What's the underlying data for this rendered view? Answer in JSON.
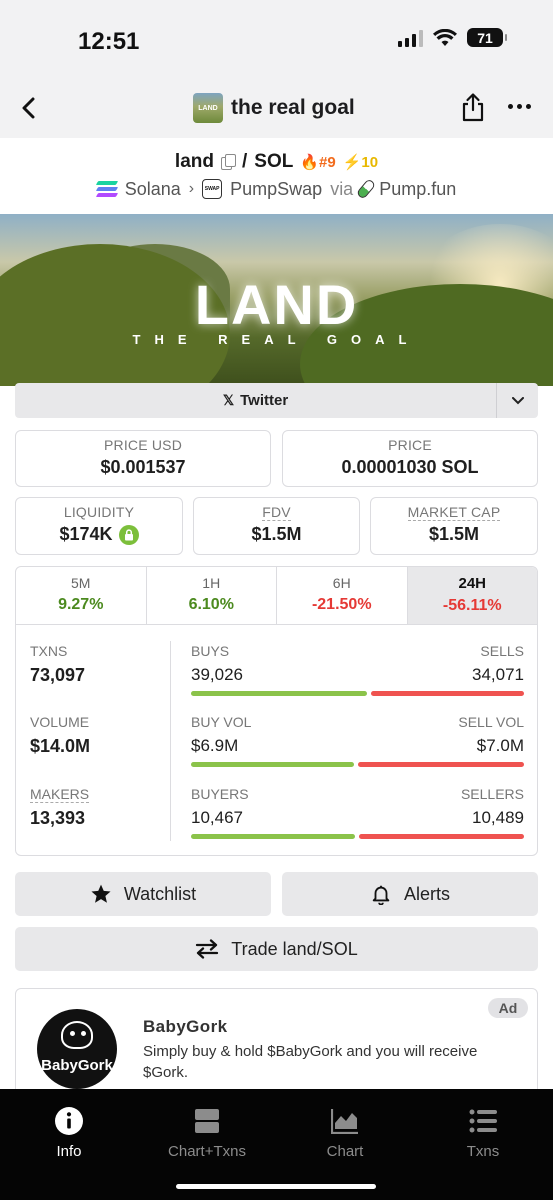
{
  "status_bar": {
    "time": "12:51",
    "battery": "71"
  },
  "nav": {
    "title": "the real goal",
    "thumb_text": "LAND"
  },
  "pair": {
    "base": "land",
    "separator": "/",
    "quote": "SOL",
    "rank_trending": "#9",
    "rank_boost": "10"
  },
  "route": {
    "chain": "Solana",
    "dex": "PumpSwap",
    "via": "via",
    "launchpad": "Pump.fun",
    "dex_icon_text": "SWAP"
  },
  "banner": {
    "title": "LAND",
    "subtitle": "THE REAL GOAL"
  },
  "social": {
    "twitter_label": "Twitter"
  },
  "prices": {
    "price_usd_label": "PRICE USD",
    "price_usd": "$0.001537",
    "price_label": "PRICE",
    "price_native": "0.00001030 SOL",
    "liquidity_label": "LIQUIDITY",
    "liquidity": "$174K",
    "fdv_label": "FDV",
    "fdv": "$1.5M",
    "mcap_label": "MARKET CAP",
    "mcap": "$1.5M"
  },
  "timeframes": [
    {
      "label": "5M",
      "change": "9.27%"
    },
    {
      "label": "1H",
      "change": "6.10%"
    },
    {
      "label": "6H",
      "change": "-21.50%"
    },
    {
      "label": "24H",
      "change": "-56.11%"
    }
  ],
  "stats": {
    "txns": {
      "label": "TXNS",
      "value": "73,097",
      "left_label": "BUYS",
      "left_value": "39,026",
      "right_label": "SELLS",
      "right_value": "34,071",
      "left_share": 0.534
    },
    "volume": {
      "label": "VOLUME",
      "value": "$14.0M",
      "left_label": "BUY VOL",
      "left_value": "$6.9M",
      "right_label": "SELL VOL",
      "right_value": "$7.0M",
      "left_share": 0.496
    },
    "makers": {
      "label": "MAKERS",
      "value": "13,393",
      "left_label": "BUYERS",
      "left_value": "10,467",
      "right_label": "SELLERS",
      "right_value": "10,489",
      "left_share": 0.499
    }
  },
  "actions": {
    "watchlist": "Watchlist",
    "alerts": "Alerts",
    "trade": "Trade land/SOL"
  },
  "ad": {
    "badge": "Ad",
    "title": "BabyGork",
    "description": "Simply buy & hold $BabyGork and you will receive $Gork.",
    "logo_text": "BabyGork"
  },
  "tabbar": [
    {
      "label": "Info",
      "icon": "info-icon"
    },
    {
      "label": "Chart+Txns",
      "icon": "split-view-icon"
    },
    {
      "label": "Chart",
      "icon": "chart-icon"
    },
    {
      "label": "Txns",
      "icon": "list-icon"
    }
  ],
  "colors": {
    "positive": "#4c8a1f",
    "negative": "#e53935",
    "buy_bar": "#8bc34a",
    "sell_bar": "#ef5350"
  }
}
